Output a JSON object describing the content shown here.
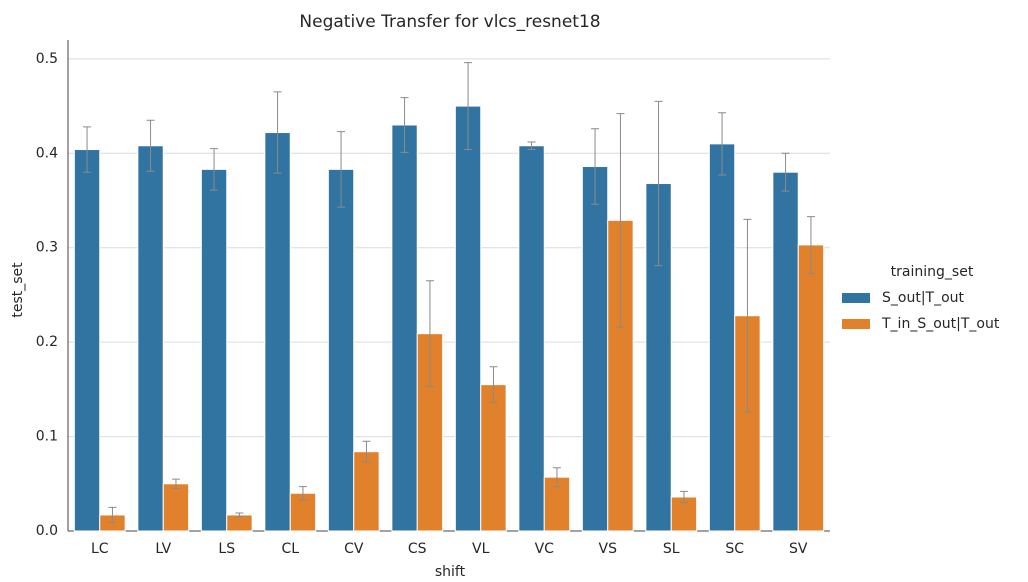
{
  "chart_data": {
    "type": "bar",
    "title": "Negative Transfer for vlcs_resnet18",
    "x_label": "shift",
    "y_label": "test_set",
    "legend_title": "training_set",
    "categories": [
      "LC",
      "LV",
      "LS",
      "CL",
      "CV",
      "CS",
      "VL",
      "VC",
      "VS",
      "SL",
      "SC",
      "SV"
    ],
    "series": [
      {
        "name": "S_out|T_out",
        "color": "#3274a1",
        "values": [
          0.404,
          0.408,
          0.383,
          0.422,
          0.383,
          0.43,
          0.45,
          0.408,
          0.386,
          0.368,
          0.41,
          0.38
        ],
        "errors": [
          0.024,
          0.027,
          0.022,
          0.043,
          0.04,
          0.029,
          0.046,
          0.004,
          0.04,
          0.087,
          0.033,
          0.02
        ]
      },
      {
        "name": "T_in_S_out|T_out",
        "color": "#e1812c",
        "values": [
          0.017,
          0.05,
          0.017,
          0.04,
          0.084,
          0.209,
          0.155,
          0.057,
          0.329,
          0.036,
          0.228,
          0.303
        ],
        "errors": [
          0.008,
          0.005,
          0.002,
          0.007,
          0.011,
          0.056,
          0.019,
          0.01,
          0.113,
          0.006,
          0.102,
          0.03
        ]
      }
    ],
    "ylim": [
      0,
      0.52
    ],
    "yticks": [
      {
        "value": 0,
        "label": "0.0"
      },
      0.1,
      0.2,
      0.3,
      0.4,
      0.5
    ],
    "grid": true,
    "legend": "right"
  }
}
